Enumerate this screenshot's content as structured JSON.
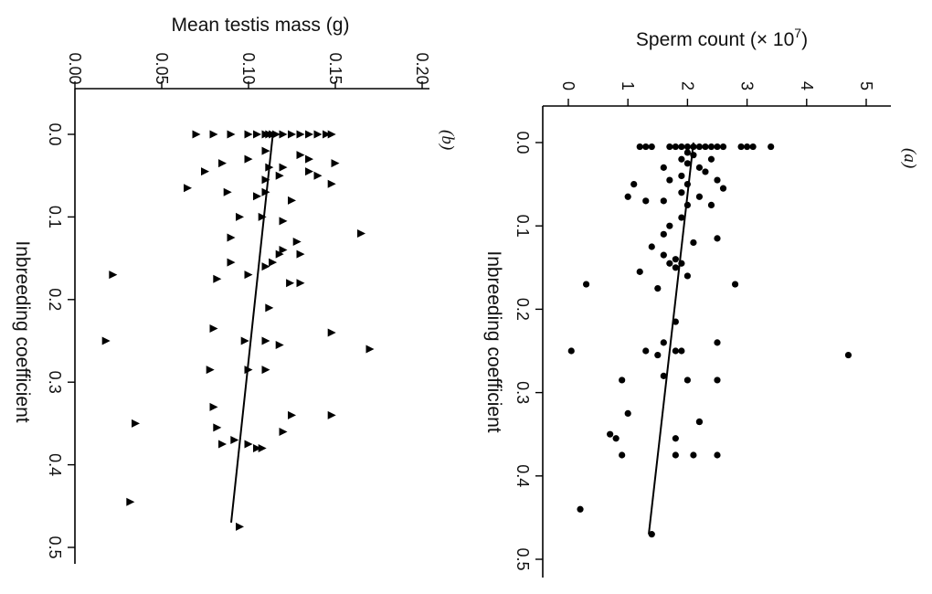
{
  "chart_data": [
    {
      "type": "scatter",
      "panel": "(a)",
      "xlabel": "Inbreeding coefficient",
      "ylabel_main": "Sperm count (",
      "ylabel_sym": "×",
      "ylabel_base": " 10",
      "ylabel_exp": "7",
      "ylabel_close": ")",
      "xlim": [
        0,
        0.5
      ],
      "ylim": [
        0,
        5
      ],
      "xticks": [
        "0.0",
        "0.1",
        "0.2",
        "0.3",
        "0.4",
        "0.5"
      ],
      "yticks": [
        "0",
        "1",
        "2",
        "3",
        "4",
        "5"
      ],
      "marker": "circle",
      "fit": {
        "x": [
          0.0,
          0.47
        ],
        "y": [
          2.1,
          1.35
        ]
      },
      "points": [
        [
          0.005,
          1.2
        ],
        [
          0.005,
          1.3
        ],
        [
          0.005,
          1.4
        ],
        [
          0.005,
          1.7
        ],
        [
          0.005,
          1.8
        ],
        [
          0.005,
          1.9
        ],
        [
          0.005,
          2.0
        ],
        [
          0.005,
          2.1
        ],
        [
          0.005,
          2.2
        ],
        [
          0.005,
          2.3
        ],
        [
          0.005,
          2.4
        ],
        [
          0.005,
          2.5
        ],
        [
          0.005,
          2.6
        ],
        [
          0.005,
          2.9
        ],
        [
          0.005,
          3.0
        ],
        [
          0.005,
          3.1
        ],
        [
          0.005,
          3.4
        ],
        [
          0.012,
          2.0
        ],
        [
          0.015,
          2.1
        ],
        [
          0.02,
          2.4
        ],
        [
          0.02,
          1.9
        ],
        [
          0.025,
          2.0
        ],
        [
          0.03,
          1.6
        ],
        [
          0.03,
          2.2
        ],
        [
          0.035,
          2.3
        ],
        [
          0.04,
          1.9
        ],
        [
          0.045,
          2.5
        ],
        [
          0.045,
          1.7
        ],
        [
          0.05,
          1.1
        ],
        [
          0.05,
          2.0
        ],
        [
          0.055,
          2.6
        ],
        [
          0.06,
          1.9
        ],
        [
          0.065,
          1.0
        ],
        [
          0.065,
          2.2
        ],
        [
          0.07,
          1.3
        ],
        [
          0.07,
          1.6
        ],
        [
          0.075,
          2.4
        ],
        [
          0.075,
          2.0
        ],
        [
          0.09,
          1.9
        ],
        [
          0.1,
          1.7
        ],
        [
          0.11,
          1.6
        ],
        [
          0.115,
          2.5
        ],
        [
          0.12,
          2.1
        ],
        [
          0.125,
          1.4
        ],
        [
          0.135,
          1.6
        ],
        [
          0.14,
          1.8
        ],
        [
          0.145,
          1.7
        ],
        [
          0.145,
          1.9
        ],
        [
          0.15,
          1.8
        ],
        [
          0.155,
          1.2
        ],
        [
          0.16,
          2.0
        ],
        [
          0.17,
          0.3
        ],
        [
          0.17,
          2.8
        ],
        [
          0.175,
          1.5
        ],
        [
          0.215,
          1.8
        ],
        [
          0.24,
          1.6
        ],
        [
          0.24,
          2.5
        ],
        [
          0.25,
          0.05
        ],
        [
          0.25,
          1.3
        ],
        [
          0.25,
          1.8
        ],
        [
          0.25,
          1.9
        ],
        [
          0.255,
          4.7
        ],
        [
          0.255,
          1.5
        ],
        [
          0.28,
          1.6
        ],
        [
          0.285,
          0.9
        ],
        [
          0.285,
          2.0
        ],
        [
          0.285,
          2.5
        ],
        [
          0.325,
          1.0
        ],
        [
          0.335,
          2.2
        ],
        [
          0.335,
          2.2
        ],
        [
          0.35,
          0.7
        ],
        [
          0.355,
          0.8
        ],
        [
          0.355,
          1.8
        ],
        [
          0.375,
          0.9
        ],
        [
          0.375,
          1.8
        ],
        [
          0.375,
          2.1
        ],
        [
          0.375,
          2.5
        ],
        [
          0.44,
          0.2
        ],
        [
          0.47,
          1.4
        ]
      ]
    },
    {
      "type": "scatter",
      "panel": "(b)",
      "xlabel": "Inbreeding coefficient",
      "ylabel": "Mean testis mass (g)",
      "xlim": [
        0,
        0.5
      ],
      "ylim": [
        0,
        0.2
      ],
      "xticks": [
        "0.0",
        "0.1",
        "0.2",
        "0.3",
        "0.4",
        "0.5"
      ],
      "yticks": [
        "0.00",
        "0.05",
        "0.10",
        "0.15",
        "0.20"
      ],
      "marker": "triangle",
      "fit": {
        "x": [
          0.0,
          0.47
        ],
        "y": [
          0.114,
          0.09
        ]
      },
      "points": [
        [
          0.0,
          0.07
        ],
        [
          0.0,
          0.08
        ],
        [
          0.0,
          0.09
        ],
        [
          0.0,
          0.1
        ],
        [
          0.0,
          0.105
        ],
        [
          0.0,
          0.11
        ],
        [
          0.0,
          0.112
        ],
        [
          0.0,
          0.114
        ],
        [
          0.0,
          0.116
        ],
        [
          0.0,
          0.12
        ],
        [
          0.0,
          0.125
        ],
        [
          0.0,
          0.13
        ],
        [
          0.0,
          0.135
        ],
        [
          0.0,
          0.14
        ],
        [
          0.0,
          0.145
        ],
        [
          0.0,
          0.148
        ],
        [
          0.02,
          0.11
        ],
        [
          0.025,
          0.13
        ],
        [
          0.03,
          0.1
        ],
        [
          0.03,
          0.135
        ],
        [
          0.035,
          0.15
        ],
        [
          0.035,
          0.085
        ],
        [
          0.04,
          0.112
        ],
        [
          0.04,
          0.12
        ],
        [
          0.045,
          0.135
        ],
        [
          0.045,
          0.075
        ],
        [
          0.05,
          0.118
        ],
        [
          0.05,
          0.14
        ],
        [
          0.055,
          0.11
        ],
        [
          0.06,
          0.148
        ],
        [
          0.065,
          0.065
        ],
        [
          0.07,
          0.088
        ],
        [
          0.07,
          0.11
        ],
        [
          0.075,
          0.105
        ],
        [
          0.08,
          0.125
        ],
        [
          0.1,
          0.095
        ],
        [
          0.1,
          0.108
        ],
        [
          0.105,
          0.12
        ],
        [
          0.12,
          0.165
        ],
        [
          0.125,
          0.09
        ],
        [
          0.13,
          0.128
        ],
        [
          0.14,
          0.12
        ],
        [
          0.145,
          0.118
        ],
        [
          0.145,
          0.13
        ],
        [
          0.155,
          0.09
        ],
        [
          0.155,
          0.114
        ],
        [
          0.16,
          0.11
        ],
        [
          0.17,
          0.022
        ],
        [
          0.17,
          0.1
        ],
        [
          0.175,
          0.082
        ],
        [
          0.18,
          0.124
        ],
        [
          0.18,
          0.13
        ],
        [
          0.21,
          0.112
        ],
        [
          0.235,
          0.08
        ],
        [
          0.24,
          0.148
        ],
        [
          0.25,
          0.018
        ],
        [
          0.25,
          0.098
        ],
        [
          0.25,
          0.11
        ],
        [
          0.255,
          0.118
        ],
        [
          0.26,
          0.17
        ],
        [
          0.285,
          0.078
        ],
        [
          0.285,
          0.1
        ],
        [
          0.285,
          0.11
        ],
        [
          0.33,
          0.08
        ],
        [
          0.34,
          0.125
        ],
        [
          0.34,
          0.148
        ],
        [
          0.35,
          0.035
        ],
        [
          0.355,
          0.082
        ],
        [
          0.36,
          0.12
        ],
        [
          0.37,
          0.092
        ],
        [
          0.375,
          0.085
        ],
        [
          0.375,
          0.1
        ],
        [
          0.38,
          0.105
        ],
        [
          0.38,
          0.108
        ],
        [
          0.445,
          0.032
        ],
        [
          0.475,
          0.095
        ]
      ]
    }
  ]
}
